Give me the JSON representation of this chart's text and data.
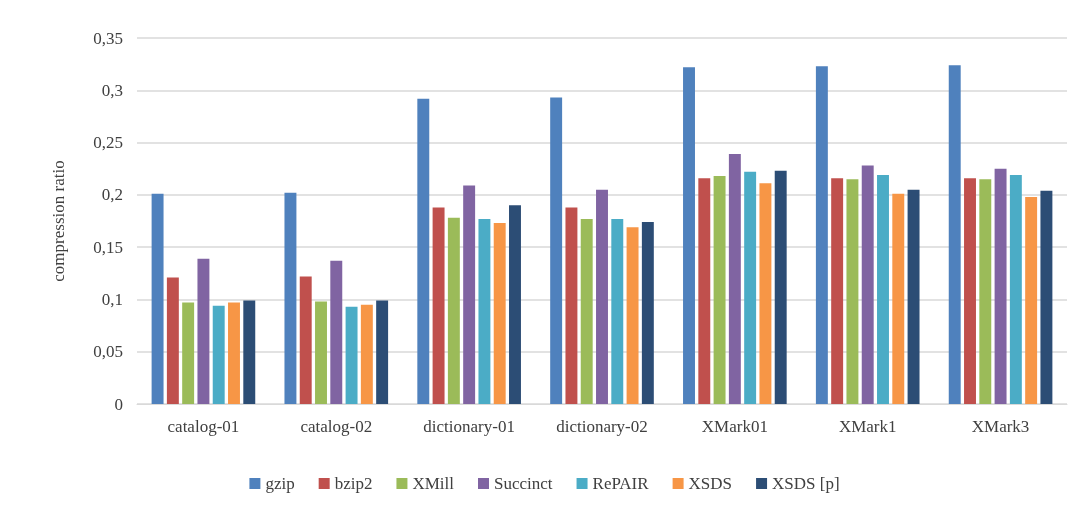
{
  "chart_data": {
    "type": "bar",
    "ylabel": "compression ratio",
    "categories": [
      "catalog-01",
      "catalog-02",
      "dictionary-01",
      "dictionary-02",
      "XMark01",
      "XMark1",
      "XMark3"
    ],
    "series": [
      {
        "name": "gzip",
        "color": "#4f81bd",
        "values": [
          0.201,
          0.202,
          0.292,
          0.293,
          0.322,
          0.323,
          0.324
        ]
      },
      {
        "name": "bzip2",
        "color": "#c0504d",
        "values": [
          0.121,
          0.122,
          0.188,
          0.188,
          0.216,
          0.216,
          0.216
        ]
      },
      {
        "name": "XMill",
        "color": "#9bbb59",
        "values": [
          0.097,
          0.098,
          0.178,
          0.177,
          0.218,
          0.215,
          0.215
        ]
      },
      {
        "name": "Succinct",
        "color": "#8064a2",
        "values": [
          0.139,
          0.137,
          0.209,
          0.205,
          0.239,
          0.228,
          0.225
        ]
      },
      {
        "name": "RePAIR",
        "color": "#4bacc6",
        "values": [
          0.094,
          0.093,
          0.177,
          0.177,
          0.222,
          0.219,
          0.219
        ]
      },
      {
        "name": "XSDS",
        "color": "#f79646",
        "values": [
          0.097,
          0.095,
          0.173,
          0.169,
          0.211,
          0.201,
          0.198
        ]
      },
      {
        "name": "XSDS [p]",
        "color": "#2c4d75",
        "values": [
          0.099,
          0.099,
          0.19,
          0.174,
          0.223,
          0.205,
          0.204
        ]
      }
    ],
    "ylim": [
      0,
      0.35
    ],
    "yticks": [
      {
        "value": 0,
        "label": "0"
      },
      {
        "value": 0.05,
        "label": "0,05"
      },
      {
        "value": 0.1,
        "label": "0,1"
      },
      {
        "value": 0.15,
        "label": "0,15"
      },
      {
        "value": 0.2,
        "label": "0,2"
      },
      {
        "value": 0.25,
        "label": "0,25"
      },
      {
        "value": 0.3,
        "label": "0,3"
      },
      {
        "value": 0.35,
        "label": "0,35"
      }
    ],
    "grid": "y",
    "legend": "bottom"
  }
}
